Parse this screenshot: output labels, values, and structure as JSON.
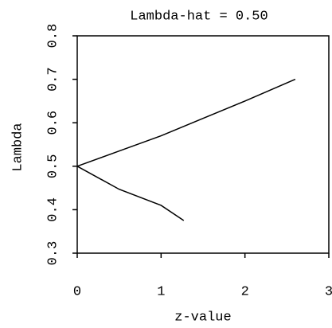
{
  "chart_data": {
    "type": "line",
    "title": "Lambda-hat = 0.50",
    "x_label": "z-value",
    "y_label": "Lambda",
    "series": [
      {
        "color": "#000000",
        "x": [
          0,
          0.5,
          1,
          1.5,
          2,
          2.6
        ],
        "values": [
          0.5,
          0.535,
          0.57,
          0.61,
          0.65,
          0.7
        ]
      },
      {
        "color": "#000000",
        "x": [
          0,
          0.5,
          1,
          1.27
        ],
        "values": [
          0.5,
          0.447,
          0.41,
          0.375
        ]
      }
    ],
    "xlim": [
      0,
      3
    ],
    "xticks": [
      0,
      1,
      2,
      3
    ],
    "ylim": [
      0.3,
      0.8
    ],
    "yticks": [
      0.3,
      0.4,
      0.5,
      0.6,
      0.7,
      0.8
    ]
  }
}
